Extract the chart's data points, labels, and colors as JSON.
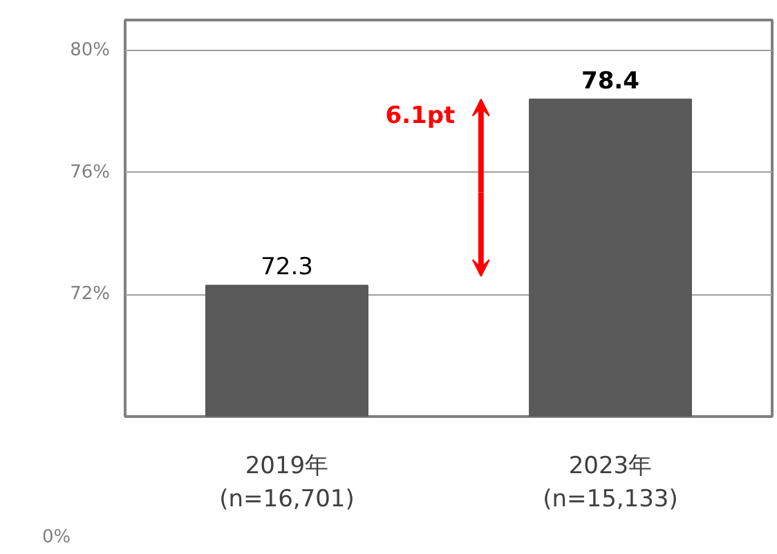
{
  "chart_data": {
    "type": "bar",
    "categories": [
      "2019年\n(n=16,701)",
      "2023年\n(n=15,133)"
    ],
    "values": [
      72.3,
      78.4
    ],
    "color": "#595959",
    "data_labels": true,
    "ylim": [
      68,
      81
    ],
    "yticks": [
      {
        "value": 72,
        "label": "72%"
      },
      {
        "value": 76,
        "label": "76%"
      },
      {
        "value": 80,
        "label": "80%"
      }
    ],
    "grid": "y",
    "annotations": [
      {
        "text": "6.1pt"
      },
      "0%"
    ]
  }
}
